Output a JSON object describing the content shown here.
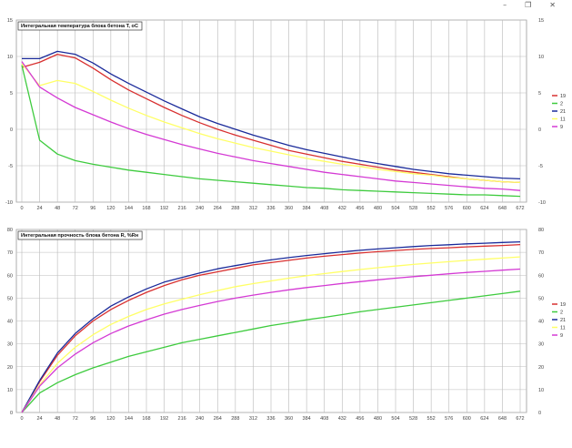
{
  "window_controls": {
    "minimize": "–",
    "restore": "❐",
    "close": "✕"
  },
  "chart_data": [
    {
      "type": "line",
      "title": "Интегральная температура блока бетона T, oC",
      "xlabel": "",
      "ylabel": "",
      "categories": [
        "0",
        "24",
        "48",
        "72",
        "96",
        "120",
        "144",
        "168",
        "192",
        "216",
        "240",
        "264",
        "288",
        "312",
        "336",
        "360",
        "384",
        "408",
        "432",
        "456",
        "480",
        "504",
        "528",
        "552",
        "576",
        "600",
        "624",
        "648",
        "672"
      ],
      "ylim": [
        -10,
        15
      ],
      "yticks": [
        "-10",
        "-5",
        "0",
        "5",
        "10",
        "15"
      ],
      "grid": true,
      "legend": "right",
      "series": [
        {
          "name": "19",
          "color": "#d83030",
          "x": [
            0,
            24,
            48,
            72,
            96,
            120,
            144,
            168,
            192,
            216,
            240,
            264,
            288,
            312,
            336,
            360,
            384,
            408,
            432,
            456,
            480,
            504,
            528,
            552,
            576,
            600,
            624,
            648,
            672
          ],
          "values": [
            8.5,
            9.2,
            10.3,
            9.8,
            8.4,
            6.8,
            5.4,
            4.2,
            3.0,
            1.9,
            0.9,
            0.0,
            -0.8,
            -1.5,
            -2.2,
            -2.9,
            -3.4,
            -3.9,
            -4.4,
            -4.8,
            -5.2,
            -5.6,
            -5.9,
            -6.2,
            -6.5,
            -6.8,
            -7.0,
            -7.2,
            -7.3
          ]
        },
        {
          "name": "2",
          "color": "#3ecb3e",
          "x": [
            0,
            24,
            48,
            72,
            96,
            120,
            144,
            168,
            192,
            216,
            240,
            264,
            288,
            312,
            336,
            360,
            384,
            408,
            432,
            456,
            480,
            504,
            528,
            552,
            576,
            600,
            624,
            648,
            672
          ],
          "values": [
            8.8,
            -1.5,
            -3.4,
            -4.3,
            -4.8,
            -5.2,
            -5.6,
            -5.9,
            -6.2,
            -6.5,
            -6.8,
            -7.0,
            -7.2,
            -7.4,
            -7.6,
            -7.8,
            -8.0,
            -8.1,
            -8.3,
            -8.4,
            -8.5,
            -8.6,
            -8.7,
            -8.8,
            -8.9,
            -9.0,
            -9.0,
            -9.1,
            -9.2
          ]
        },
        {
          "name": "21",
          "color": "#1a2a9a",
          "x": [
            0,
            24,
            48,
            72,
            96,
            120,
            144,
            168,
            192,
            216,
            240,
            264,
            288,
            312,
            336,
            360,
            384,
            408,
            432,
            456,
            480,
            504,
            528,
            552,
            576,
            600,
            624,
            648,
            672
          ],
          "values": [
            9.7,
            9.7,
            10.7,
            10.3,
            9.1,
            7.6,
            6.3,
            5.1,
            3.9,
            2.8,
            1.7,
            0.8,
            0.0,
            -0.8,
            -1.5,
            -2.2,
            -2.8,
            -3.3,
            -3.8,
            -4.3,
            -4.7,
            -5.1,
            -5.5,
            -5.8,
            -6.1,
            -6.3,
            -6.5,
            -6.7,
            -6.8
          ]
        },
        {
          "name": "11",
          "color": "#ffff66",
          "x": [
            0,
            24,
            48,
            72,
            96,
            120,
            144,
            168,
            192,
            216,
            240,
            264,
            288,
            312,
            336,
            360,
            384,
            408,
            432,
            456,
            480,
            504,
            528,
            552,
            576,
            600,
            624,
            648,
            672
          ],
          "values": [
            9.0,
            6.0,
            6.7,
            6.3,
            5.2,
            4.0,
            2.9,
            1.9,
            1.0,
            0.2,
            -0.6,
            -1.3,
            -1.9,
            -2.5,
            -3.0,
            -3.5,
            -4.0,
            -4.4,
            -4.8,
            -5.1,
            -5.5,
            -5.8,
            -6.1,
            -6.3,
            -6.6,
            -6.8,
            -7.0,
            -7.2,
            -7.3
          ]
        },
        {
          "name": "9",
          "color": "#d43ad4",
          "x": [
            0,
            24,
            48,
            72,
            96,
            120,
            144,
            168,
            192,
            216,
            240,
            264,
            288,
            312,
            336,
            360,
            384,
            408,
            432,
            456,
            480,
            504,
            528,
            552,
            576,
            600,
            624,
            648,
            672
          ],
          "values": [
            9.3,
            5.8,
            4.3,
            3.0,
            2.0,
            1.0,
            0.1,
            -0.7,
            -1.4,
            -2.1,
            -2.7,
            -3.3,
            -3.8,
            -4.3,
            -4.7,
            -5.1,
            -5.5,
            -5.9,
            -6.2,
            -6.5,
            -6.8,
            -7.1,
            -7.3,
            -7.5,
            -7.7,
            -7.9,
            -8.1,
            -8.2,
            -8.4
          ]
        }
      ]
    },
    {
      "type": "line",
      "title": "Интегральная прочность блока бетона R, %Rн",
      "xlabel": "",
      "ylabel": "",
      "categories": [
        "0",
        "24",
        "48",
        "72",
        "96",
        "120",
        "144",
        "168",
        "192",
        "216",
        "240",
        "264",
        "288",
        "312",
        "336",
        "360",
        "384",
        "408",
        "432",
        "456",
        "480",
        "504",
        "528",
        "552",
        "576",
        "600",
        "624",
        "648",
        "672"
      ],
      "ylim": [
        0,
        80
      ],
      "yticks": [
        "0",
        "10",
        "20",
        "30",
        "40",
        "50",
        "60",
        "70",
        "80"
      ],
      "grid": true,
      "legend": "right",
      "series": [
        {
          "name": "19",
          "color": "#d83030",
          "x": [
            0,
            24,
            48,
            72,
            96,
            120,
            144,
            168,
            192,
            216,
            240,
            264,
            288,
            312,
            336,
            360,
            384,
            408,
            432,
            456,
            480,
            504,
            528,
            552,
            576,
            600,
            624,
            648,
            672
          ],
          "values": [
            0,
            13.5,
            25,
            33.5,
            40,
            45,
            49,
            52.5,
            55.5,
            58,
            60,
            61.5,
            63,
            64.5,
            65.5,
            66.5,
            67.5,
            68.3,
            69,
            69.7,
            70.3,
            70.8,
            71.3,
            71.7,
            72,
            72.4,
            72.7,
            73,
            73.4
          ]
        },
        {
          "name": "2",
          "color": "#3ecb3e",
          "x": [
            0,
            24,
            48,
            72,
            96,
            120,
            144,
            168,
            192,
            216,
            240,
            264,
            288,
            312,
            336,
            360,
            384,
            408,
            432,
            456,
            480,
            504,
            528,
            552,
            576,
            600,
            624,
            648,
            672
          ],
          "values": [
            0,
            8.5,
            13,
            16.5,
            19.5,
            22,
            24.5,
            26.5,
            28.5,
            30.5,
            32,
            33.5,
            35,
            36.5,
            38,
            39.2,
            40.5,
            41.6,
            42.8,
            44,
            45,
            46,
            47,
            48,
            49,
            50,
            51,
            52,
            53
          ]
        },
        {
          "name": "21",
          "color": "#1a2a9a",
          "x": [
            0,
            24,
            48,
            72,
            96,
            120,
            144,
            168,
            192,
            216,
            240,
            264,
            288,
            312,
            336,
            360,
            384,
            408,
            432,
            456,
            480,
            504,
            528,
            552,
            576,
            600,
            624,
            648,
            672
          ],
          "values": [
            0,
            14,
            26,
            34.5,
            41,
            46.5,
            50.5,
            54,
            57,
            59,
            61,
            62.8,
            64.2,
            65.5,
            66.7,
            67.7,
            68.6,
            69.4,
            70.2,
            70.9,
            71.5,
            72,
            72.5,
            73,
            73.3,
            73.7,
            74,
            74.3,
            74.6
          ]
        },
        {
          "name": "11",
          "color": "#ffff66",
          "x": [
            0,
            24,
            48,
            72,
            96,
            120,
            144,
            168,
            192,
            216,
            240,
            264,
            288,
            312,
            336,
            360,
            384,
            408,
            432,
            456,
            480,
            504,
            528,
            552,
            576,
            600,
            624,
            648,
            672
          ],
          "values": [
            0,
            12,
            21.5,
            28.5,
            34,
            38.5,
            42,
            45,
            47.5,
            49.5,
            51.5,
            53.3,
            55,
            56.3,
            57.5,
            58.7,
            59.8,
            60.7,
            61.6,
            62.5,
            63.3,
            64,
            64.7,
            65.3,
            65.9,
            66.5,
            67,
            67.5,
            68
          ]
        },
        {
          "name": "9",
          "color": "#d43ad4",
          "x": [
            0,
            24,
            48,
            72,
            96,
            120,
            144,
            168,
            192,
            216,
            240,
            264,
            288,
            312,
            336,
            360,
            384,
            408,
            432,
            456,
            480,
            504,
            528,
            552,
            576,
            600,
            624,
            648,
            672
          ],
          "values": [
            0,
            11.5,
            19.5,
            25.5,
            30.5,
            34.5,
            37.8,
            40.5,
            43,
            45,
            46.8,
            48.5,
            50,
            51.3,
            52.5,
            53.6,
            54.6,
            55.5,
            56.4,
            57.2,
            58,
            58.7,
            59.4,
            60,
            60.6,
            61.2,
            61.7,
            62.2,
            62.7
          ]
        }
      ]
    }
  ]
}
